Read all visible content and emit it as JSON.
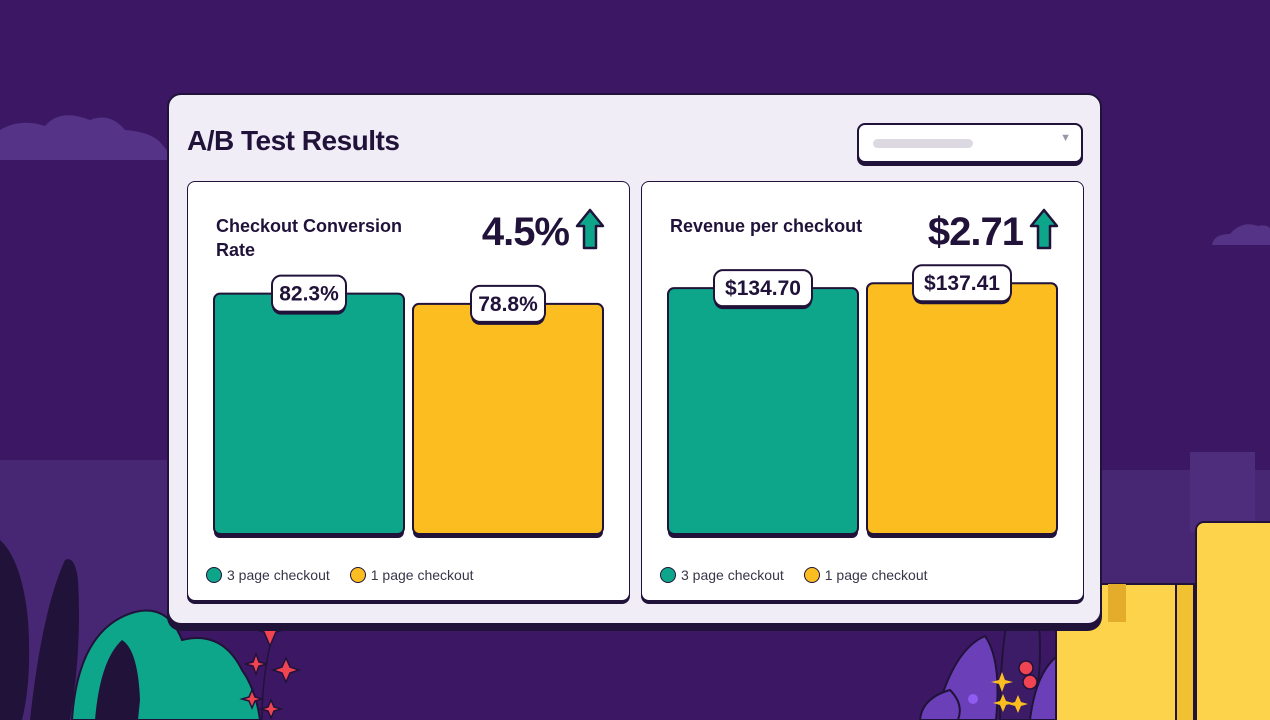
{
  "dashboard": {
    "title": "A/B Test Results",
    "filter": {
      "selected": ""
    }
  },
  "colors": {
    "background": "#3c1864",
    "card": "#f0edf7",
    "three_page": "#0ea68a",
    "one_page": "#fbbd1f",
    "outline": "#21123a",
    "accent_up": "#0ea68a"
  },
  "icons": {
    "trend": "arrow-up-icon",
    "dropdown": "chevron-down-icon"
  },
  "chart_data": [
    {
      "type": "bar",
      "title": "Checkout Conversion Rate",
      "headline": "4.5%",
      "headline_trend": "up",
      "categories": [
        "3 page checkout",
        "1 page checkout"
      ],
      "values": [
        82.3,
        78.8
      ],
      "value_labels": [
        "82.3%",
        "78.8%"
      ],
      "legend": [
        "3 page checkout",
        "1 page checkout"
      ],
      "legend_position": "bottom-left",
      "ylim": [
        0,
        100
      ],
      "grid": false
    },
    {
      "type": "bar",
      "title": "Revenue per checkout",
      "headline": "$2.71",
      "headline_trend": "up",
      "categories": [
        "3 page checkout",
        "1 page checkout"
      ],
      "values": [
        134.7,
        137.41
      ],
      "value_labels": [
        "$134.70",
        "$137.41"
      ],
      "legend": [
        "3 page checkout",
        "1 page checkout"
      ],
      "legend_position": "bottom-left",
      "ylim": [
        0,
        160
      ],
      "grid": false
    }
  ]
}
